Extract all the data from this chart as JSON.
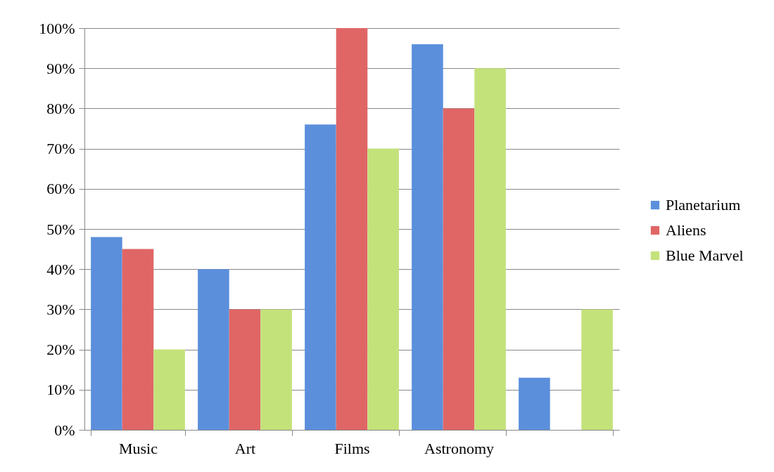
{
  "chart_data": {
    "type": "bar",
    "categories": [
      "Music",
      "Art",
      "Films",
      "Astronomy",
      null
    ],
    "series": [
      {
        "name": "Planetarium",
        "color": "#5b8fdc",
        "values": [
          48,
          40,
          76,
          96,
          13
        ]
      },
      {
        "name": "Aliens",
        "color": "#e06666",
        "values": [
          45,
          30,
          100,
          80,
          null
        ]
      },
      {
        "name": "Blue Marvel",
        "color": "#c4e27a",
        "values": [
          20,
          30,
          70,
          90,
          30
        ]
      }
    ],
    "ylim": [
      0,
      100
    ],
    "yticks": [
      {
        "value": 0,
        "label": "0%"
      },
      {
        "value": 10,
        "label": "10%"
      },
      {
        "value": 20,
        "label": "20%"
      },
      {
        "value": 30,
        "label": "30%"
      },
      {
        "value": 40,
        "label": "40%"
      },
      {
        "value": 50,
        "label": "50%"
      },
      {
        "value": 60,
        "label": "60%"
      },
      {
        "value": 70,
        "label": "70%"
      },
      {
        "value": 80,
        "label": "80%"
      },
      {
        "value": 90,
        "label": "90%"
      },
      {
        "value": 100,
        "label": "100%"
      }
    ],
    "grid": "y",
    "legend": "right"
  }
}
